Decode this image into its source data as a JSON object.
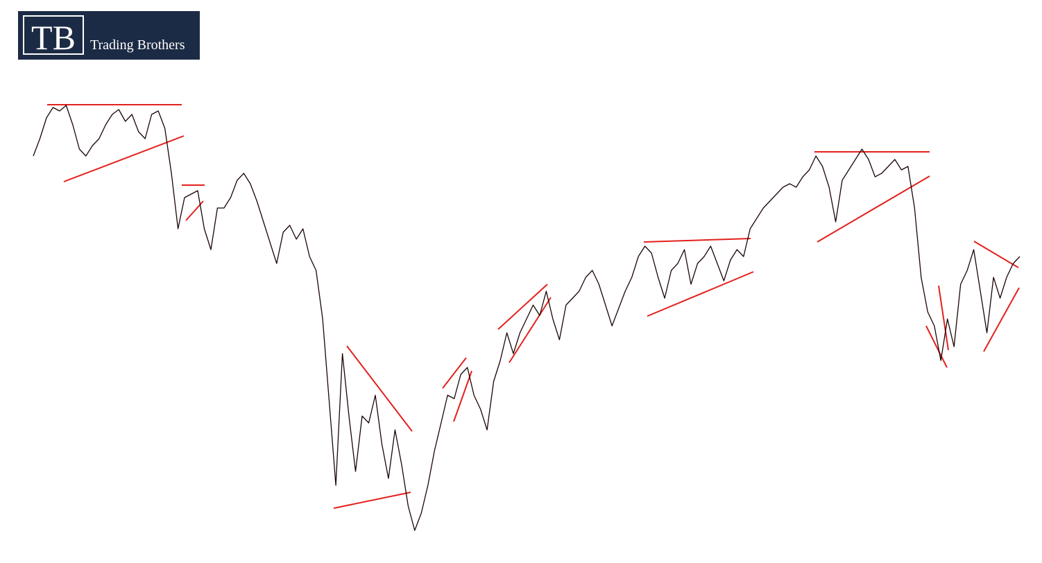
{
  "chart_data": {
    "type": "line",
    "logo": {
      "mark": "TB",
      "name": "Trading Brothers"
    },
    "ylim": [
      0,
      624
    ],
    "color": "#1a0505",
    "values": [
      547,
      572,
      602,
      617,
      612,
      620,
      592,
      557,
      547,
      562,
      572,
      592,
      607,
      614,
      597,
      607,
      582,
      572,
      607,
      612,
      587,
      522,
      442,
      487,
      492,
      497,
      442,
      412,
      472,
      472,
      487,
      512,
      522,
      507,
      482,
      452,
      422,
      392,
      437,
      447,
      427,
      442,
      402,
      382,
      312,
      192,
      72,
      262,
      172,
      92,
      172,
      162,
      202,
      132,
      82,
      152,
      102,
      42,
      7,
      32,
      72,
      122,
      162,
      202,
      197,
      232,
      242,
      202,
      182,
      152,
      222,
      252,
      292,
      262,
      292,
      312,
      332,
      317,
      352,
      312,
      282,
      332,
      342,
      352,
      372,
      382,
      362,
      332,
      302,
      327,
      352,
      372,
      402,
      417,
      407,
      372,
      342,
      382,
      392,
      412,
      362,
      392,
      402,
      417,
      392,
      367,
      397,
      412,
      402,
      442,
      457,
      472,
      482,
      492,
      502,
      507,
      502,
      517,
      527,
      547,
      532,
      502,
      452,
      512,
      527,
      542,
      557,
      542,
      517,
      522,
      532,
      542,
      527,
      532,
      472,
      372,
      322,
      302,
      252,
      312,
      272,
      362,
      382,
      412,
      352,
      292,
      372,
      342,
      372,
      392,
      402
    ]
  }
}
